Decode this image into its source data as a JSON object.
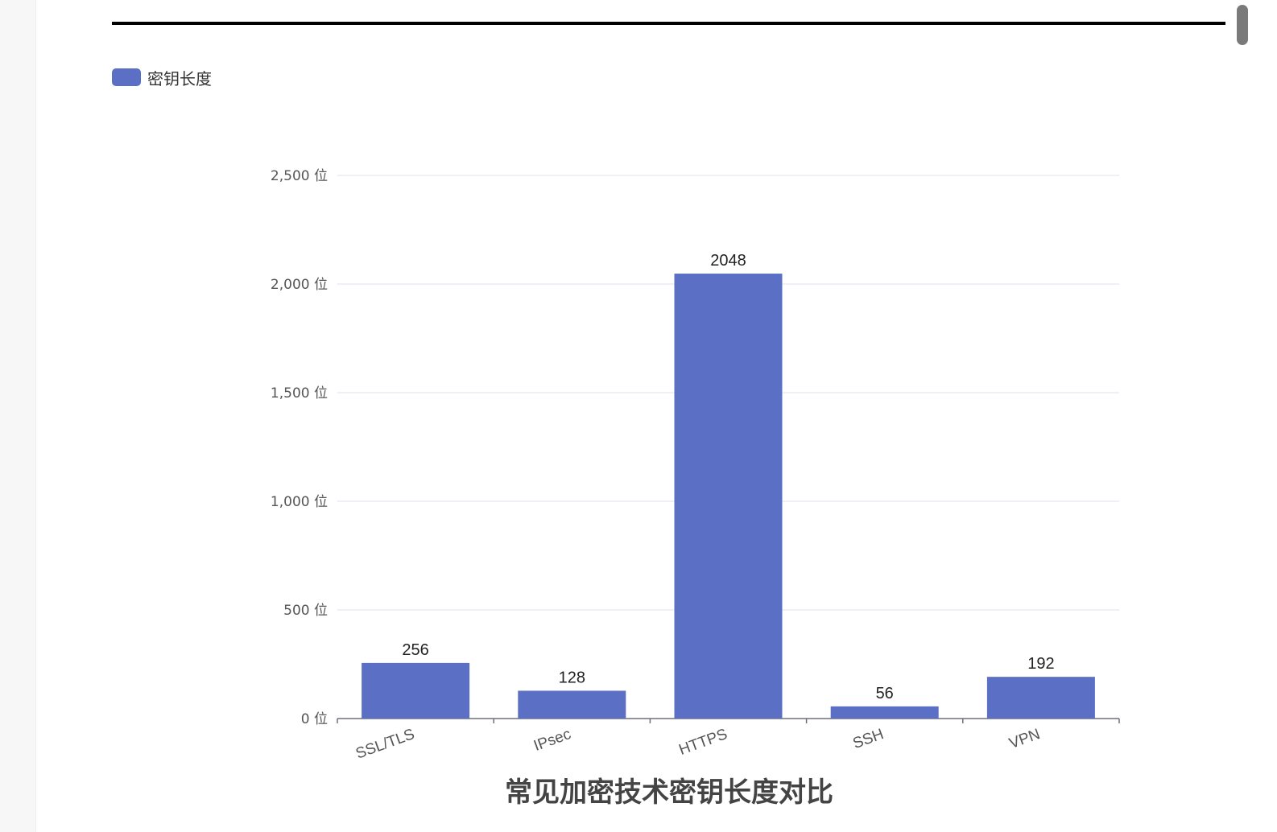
{
  "colors": {
    "bar": "#5b70c4",
    "grid": "#e3e6f0",
    "axis": "#6e7079",
    "text": "#222",
    "tick": "#555",
    "title": "#444"
  },
  "chart_data": {
    "type": "bar",
    "title": "常见加密技术密钥长度对比",
    "legend": {
      "label": "密钥长度",
      "placement": "top-left"
    },
    "categories": [
      "SSL/TLS",
      "IPsec",
      "HTTPS",
      "SSH",
      "VPN"
    ],
    "series": [
      {
        "name": "密钥长度",
        "values": [
          256,
          128,
          2048,
          56,
          192
        ]
      }
    ],
    "ylim": [
      0,
      2500
    ],
    "yticks": [
      0,
      500,
      1000,
      1500,
      2000,
      2500
    ],
    "yunit": "位",
    "grid": true,
    "data_labels": true
  }
}
